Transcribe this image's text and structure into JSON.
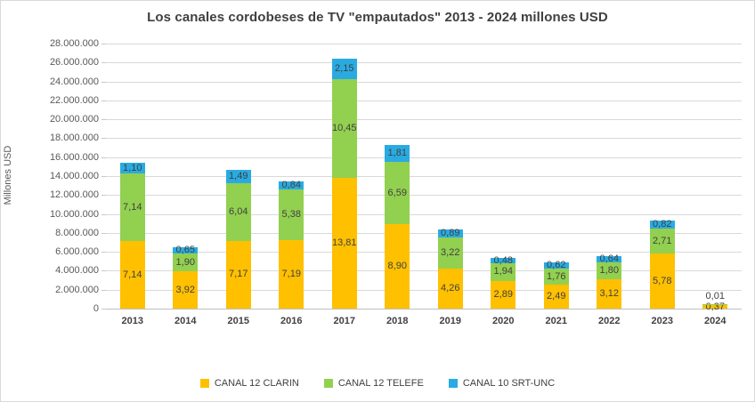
{
  "title": "Los canales cordobeses de TV \"empautados\" 2013 - 2024 millones USD",
  "y_axis": {
    "title": "Millones USD",
    "max": 28000000,
    "step": 2000000,
    "min_label": "0"
  },
  "chart_data": {
    "type": "bar",
    "stacked": true,
    "title": "Los canales cordobeses de TV \"empautados\" 2013 - 2024 millones USD",
    "xlabel": "",
    "ylabel": "Millones USD",
    "ylim": [
      0,
      28000000
    ],
    "y_tick_step": 2000000,
    "grid": true,
    "legend_position": "bottom",
    "categories": [
      "2013",
      "2014",
      "2015",
      "2016",
      "2017",
      "2018",
      "2019",
      "2020",
      "2021",
      "2022",
      "2023",
      "2024"
    ],
    "series": [
      {
        "name": "CANAL 12 CLARIN",
        "color": "#FFC000",
        "values": [
          7.14,
          3.92,
          7.17,
          7.19,
          13.81,
          8.9,
          4.26,
          2.89,
          2.49,
          3.12,
          5.78,
          0.37
        ],
        "labels": [
          "7,14",
          "3,92",
          "7,17",
          "7,19",
          "13,81",
          "8,90",
          "4,26",
          "2,89",
          "2,49",
          "3,12",
          "5,78",
          "0,37"
        ]
      },
      {
        "name": "CANAL 12 TELEFE",
        "color": "#92D050",
        "values": [
          7.14,
          1.9,
          6.04,
          5.38,
          10.45,
          6.59,
          3.22,
          1.94,
          1.76,
          1.8,
          2.71,
          0.01
        ],
        "labels": [
          "7,14",
          "1,90",
          "6,04",
          "5,38",
          "10,45",
          "6,59",
          "3,22",
          "1,94",
          "1,76",
          "1,80",
          "2,71",
          "0,01"
        ]
      },
      {
        "name": "CANAL 10 SRT-UNC",
        "color": "#29ABE2",
        "values": [
          1.1,
          0.65,
          1.49,
          0.84,
          2.15,
          1.81,
          0.89,
          0.48,
          0.62,
          0.64,
          0.82,
          null
        ],
        "labels": [
          "1,10",
          "0,65",
          "1,49",
          "0,84",
          "2,15",
          "1,81",
          "0,89",
          "0,48",
          "0,62",
          "0,64",
          "0,82",
          ""
        ]
      }
    ]
  }
}
